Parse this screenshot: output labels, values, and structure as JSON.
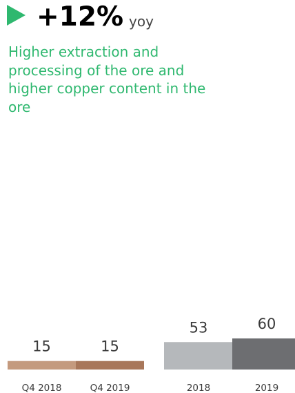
{
  "headline": {
    "value": "+12%",
    "unit": "yoy"
  },
  "icon": "play-triangle-icon",
  "description": "Higher extraction and processing of the ore and higher copper content in the ore",
  "colors": {
    "accent": "#2fb86f",
    "q4_2018": "#c49a7e",
    "q4_2019": "#a8775a",
    "y2018": "#b5b8bb",
    "y2019": "#6d6e71"
  },
  "chart_data": {
    "type": "bar",
    "groups": [
      {
        "name": "quarterly",
        "categories": [
          "Q4 2018",
          "Q4 2019"
        ],
        "values": [
          15,
          15
        ],
        "colors": [
          "#c49a7e",
          "#a8775a"
        ]
      },
      {
        "name": "annual",
        "categories": [
          "2018",
          "2019"
        ],
        "values": [
          53,
          60
        ],
        "colors": [
          "#b5b8bb",
          "#6d6e71"
        ]
      }
    ]
  }
}
